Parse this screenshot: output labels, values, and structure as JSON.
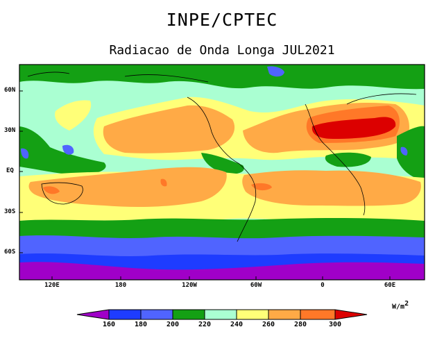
{
  "title": "INPE/CPTEC",
  "subtitle": "Radiacao de Onda Longa JUL2021",
  "units": {
    "base": "W/m",
    "exp": "2"
  },
  "lat_ticks": [
    "60N",
    "30N",
    "EQ",
    "30S",
    "60S"
  ],
  "lon_ticks": [
    "120E",
    "180",
    "120W",
    "60W",
    "0",
    "60E"
  ],
  "colorbar": {
    "levels": [
      "160",
      "180",
      "200",
      "220",
      "240",
      "260",
      "280",
      "300"
    ],
    "colors": [
      "#a000c8",
      "#1e3cff",
      "#5064ff",
      "#14a014",
      "#aaffd2",
      "#ffff78",
      "#ffaa46",
      "#ff7828",
      "#dc0000"
    ]
  },
  "palette": {
    "v160": "#a000c8",
    "v180": "#1e3cff",
    "v200": "#5064ff",
    "v220": "#14a014",
    "v240": "#aaffd2",
    "v260": "#ffff78",
    "v280": "#ffaa46",
    "v300": "#ff7828",
    "v320": "#dc0000"
  }
}
